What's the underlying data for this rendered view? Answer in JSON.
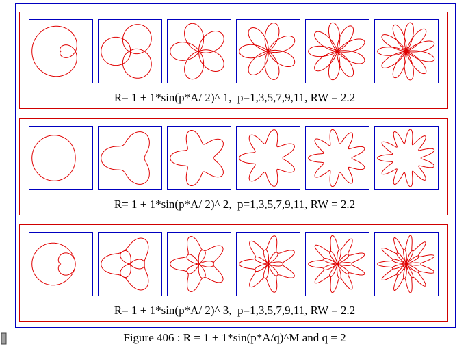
{
  "figure": {
    "caption": "Figure 406 : R = 1 + 1*sin(p*A/q)^M and q = 2",
    "q": 2,
    "window": 2.2,
    "rows": [
      {
        "caption": "R= 1 + 1*sin(p*A/ 2)^ 1,  p=1,3,5,7,9,11, RW = 2.2",
        "exponent": 1,
        "p": [
          1,
          3,
          5,
          7,
          9,
          11
        ]
      },
      {
        "caption": "R= 1 + 1*sin(p*A/ 2)^ 2,  p=1,3,5,7,9,11, RW = 2.2",
        "exponent": 2,
        "p": [
          1,
          3,
          5,
          7,
          9,
          11
        ]
      },
      {
        "caption": "R= 1 + 1*sin(p*A/ 2)^ 3,  p=1,3,5,7,9,11, RW = 2.2",
        "exponent": 3,
        "p": [
          1,
          3,
          5,
          7,
          9,
          11
        ]
      }
    ]
  }
}
